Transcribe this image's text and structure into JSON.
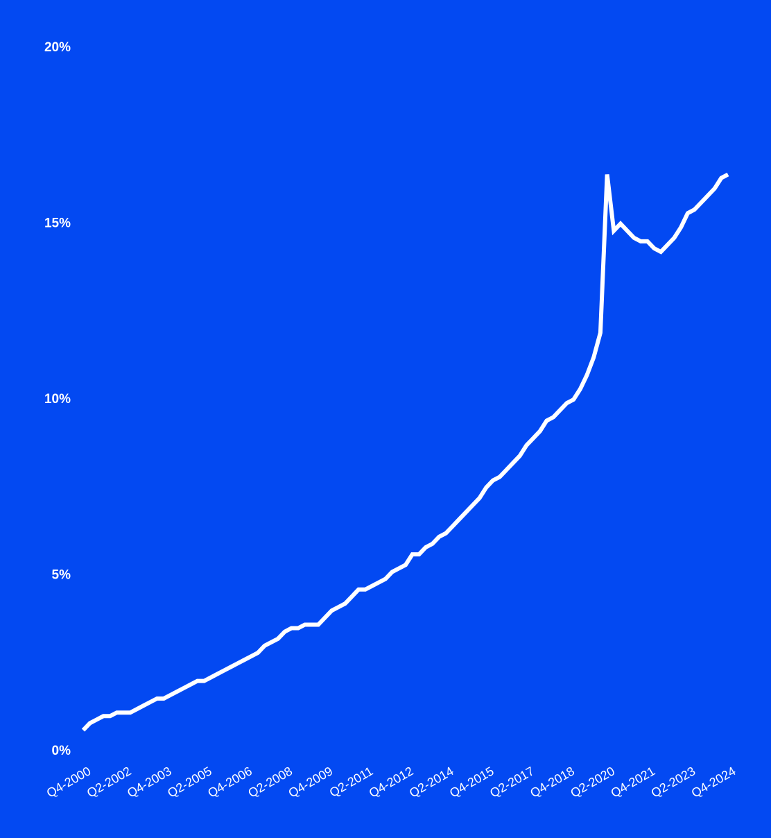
{
  "chart_data": {
    "type": "line",
    "categories": [
      "Q4-2000",
      null,
      null,
      null,
      null,
      null,
      "Q2-2002",
      null,
      null,
      null,
      null,
      null,
      "Q4-2003",
      null,
      null,
      null,
      null,
      null,
      "Q2-2005",
      null,
      null,
      null,
      null,
      null,
      "Q4-2006",
      null,
      null,
      null,
      null,
      null,
      "Q2-2008",
      null,
      null,
      null,
      null,
      null,
      "Q4-2009",
      null,
      null,
      null,
      null,
      null,
      "Q2-2011",
      null,
      null,
      null,
      null,
      null,
      "Q4-2012",
      null,
      null,
      null,
      null,
      null,
      "Q2-2014",
      null,
      null,
      null,
      null,
      null,
      "Q4-2015",
      null,
      null,
      null,
      null,
      null,
      "Q2-2017",
      null,
      null,
      null,
      null,
      null,
      "Q4-2018",
      null,
      null,
      null,
      null,
      null,
      "Q2-2020",
      null,
      null,
      null,
      null,
      null,
      "Q4-2021",
      null,
      null,
      null,
      null,
      null,
      "Q2-2023",
      null,
      null,
      null,
      null,
      null,
      "Q4-2024"
    ],
    "values": [
      0.6,
      0.8,
      0.9,
      1.0,
      1.0,
      1.1,
      1.1,
      1.1,
      1.2,
      1.3,
      1.4,
      1.5,
      1.5,
      1.6,
      1.7,
      1.8,
      1.9,
      2.0,
      2.0,
      2.1,
      2.2,
      2.3,
      2.4,
      2.5,
      2.6,
      2.7,
      2.8,
      3.0,
      3.1,
      3.2,
      3.4,
      3.5,
      3.5,
      3.6,
      3.6,
      3.6,
      3.8,
      4.0,
      4.1,
      4.2,
      4.4,
      4.6,
      4.6,
      4.7,
      4.8,
      4.9,
      5.1,
      5.2,
      5.3,
      5.6,
      5.6,
      5.8,
      5.9,
      6.1,
      6.2,
      6.4,
      6.6,
      6.8,
      7.0,
      7.2,
      7.5,
      7.7,
      7.8,
      8.0,
      8.2,
      8.4,
      8.7,
      8.9,
      9.1,
      9.4,
      9.5,
      9.7,
      9.9,
      10.0,
      10.3,
      10.7,
      11.2,
      11.9,
      16.4,
      14.8,
      15.0,
      14.8,
      14.6,
      14.5,
      14.5,
      14.3,
      14.2,
      14.4,
      14.6,
      14.9,
      15.3,
      15.4,
      15.6,
      15.8,
      16.0,
      16.3,
      16.4
    ],
    "color": "#ffffff",
    "ylim": [
      0,
      20
    ],
    "yticks": [
      {
        "value": 0,
        "label": "0%"
      },
      {
        "value": 5,
        "label": "5%"
      },
      {
        "value": 10,
        "label": "10%"
      },
      {
        "value": 15,
        "label": "15%"
      },
      {
        "value": 20,
        "label": "20%"
      }
    ],
    "grid": false
  }
}
